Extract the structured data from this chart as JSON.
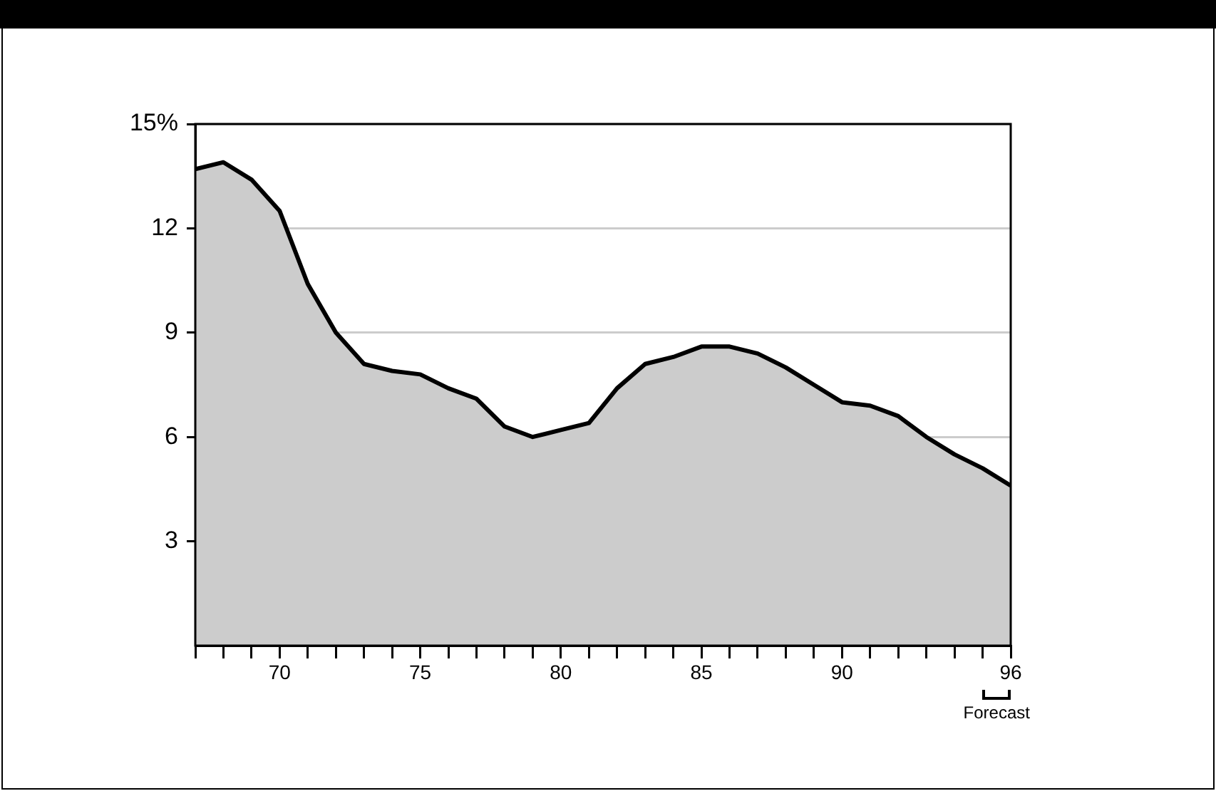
{
  "chart_data": {
    "type": "area",
    "x": [
      67,
      68,
      69,
      70,
      71,
      72,
      73,
      74,
      75,
      76,
      77,
      78,
      79,
      80,
      81,
      82,
      83,
      84,
      85,
      86,
      87,
      88,
      89,
      90,
      91,
      92,
      93,
      94,
      95,
      96
    ],
    "series": [
      {
        "color": "#cccccc",
        "values": [
          13.7,
          13.9,
          13.4,
          12.5,
          10.4,
          9.0,
          8.1,
          7.9,
          7.8,
          7.4,
          7.1,
          6.3,
          6.0,
          6.2,
          6.4,
          7.4,
          8.1,
          8.3,
          8.6,
          8.6,
          8.4,
          8.0,
          7.5,
          7.0,
          6.9,
          6.6,
          6.0,
          5.5,
          5.1,
          4.6
        ]
      }
    ],
    "xlim": [
      67,
      96
    ],
    "xticks": [
      {
        "value": 67,
        "label": null
      },
      {
        "value": 68,
        "label": null
      },
      {
        "value": 69,
        "label": null
      },
      70,
      {
        "value": 71,
        "label": null
      },
      {
        "value": 72,
        "label": null
      },
      {
        "value": 73,
        "label": null
      },
      {
        "value": 74,
        "label": null
      },
      75,
      {
        "value": 76,
        "label": null
      },
      {
        "value": 77,
        "label": null
      },
      {
        "value": 78,
        "label": null
      },
      {
        "value": 79,
        "label": null
      },
      80,
      {
        "value": 81,
        "label": null
      },
      {
        "value": 82,
        "label": null
      },
      {
        "value": 83,
        "label": null
      },
      {
        "value": 84,
        "label": null
      },
      85,
      {
        "value": 86,
        "label": null
      },
      {
        "value": 87,
        "label": null
      },
      {
        "value": 88,
        "label": null
      },
      {
        "value": 89,
        "label": null
      },
      90,
      {
        "value": 91,
        "label": null
      },
      {
        "value": 92,
        "label": null
      },
      {
        "value": 93,
        "label": null
      },
      {
        "value": 94,
        "label": null
      },
      {
        "value": 95,
        "label": null
      },
      96
    ],
    "ylim": [
      0,
      15
    ],
    "yticks": [
      3,
      6,
      9,
      12,
      {
        "value": 15,
        "label": "15%"
      }
    ],
    "grid": "y",
    "legend": false,
    "marker": "none",
    "line_style": "solid",
    "annotations": [
      "Forecast"
    ]
  }
}
